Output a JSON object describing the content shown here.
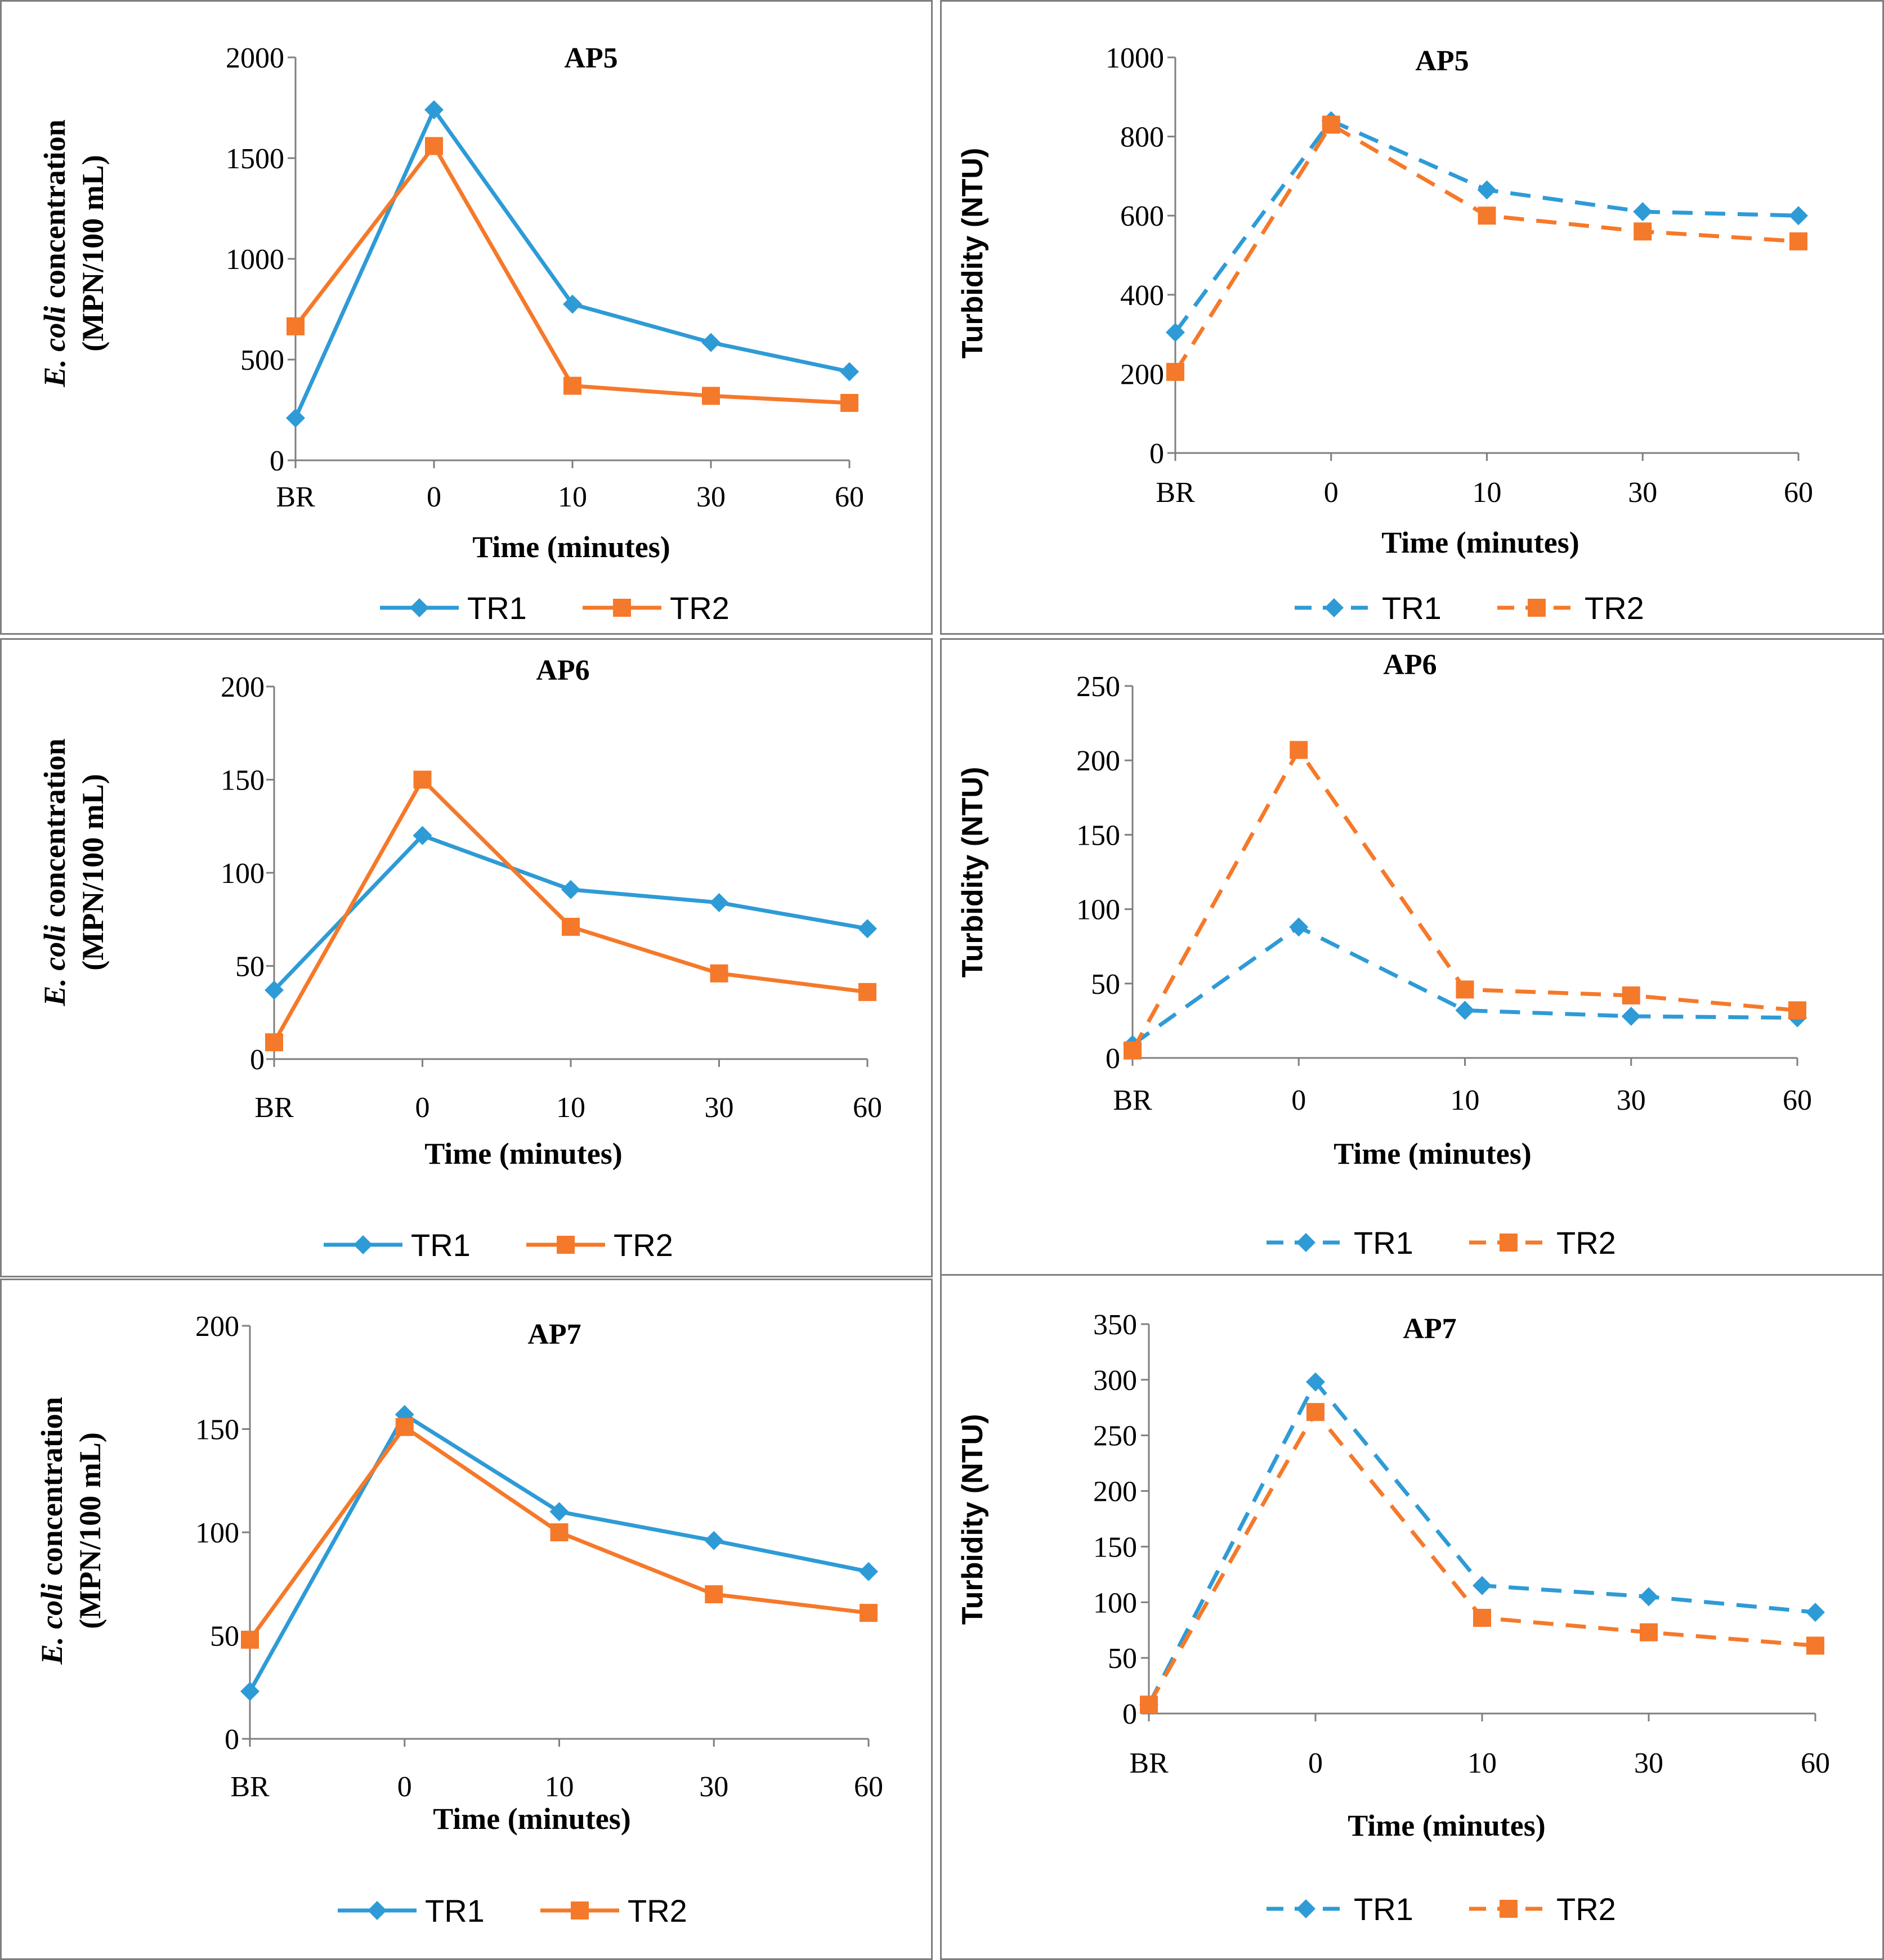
{
  "colors": {
    "tr1": "#2e9bd6",
    "tr2": "#f5792a",
    "axis": "#7f7f7f",
    "text": "#000000"
  },
  "chart_data": [
    {
      "id": "ecoli-ap5",
      "type": "line",
      "title": "AP5",
      "xlabel": "Time (minutes)",
      "ylabel_parts": [
        "E. coli",
        " concentration",
        "(MPN/100 mL)"
      ],
      "categories": [
        "BR",
        "0",
        "10",
        "30",
        "60"
      ],
      "ylim": [
        0,
        2000
      ],
      "yticks": [
        0,
        500,
        1000,
        1500,
        2000
      ],
      "line_style": "solid",
      "series": [
        {
          "name": "TR1",
          "marker": "diamond",
          "values": [
            210,
            1740,
            775,
            585,
            440
          ]
        },
        {
          "name": "TR2",
          "marker": "square",
          "values": [
            665,
            1560,
            370,
            320,
            285
          ]
        }
      ]
    },
    {
      "id": "turbidity-ap5",
      "type": "line",
      "title": "AP5",
      "xlabel": "Time (minutes)",
      "ylabel": "Turbidity (NTU)",
      "categories": [
        "BR",
        "0",
        "10",
        "30",
        "60"
      ],
      "ylim": [
        0,
        1000
      ],
      "yticks": [
        0,
        200,
        400,
        600,
        800,
        1000
      ],
      "line_style": "dashed",
      "series": [
        {
          "name": "TR1",
          "marker": "diamond",
          "values": [
            305,
            840,
            665,
            610,
            600
          ]
        },
        {
          "name": "TR2",
          "marker": "square",
          "values": [
            205,
            830,
            600,
            560,
            535
          ]
        }
      ]
    },
    {
      "id": "ecoli-ap6",
      "type": "line",
      "title": "AP6",
      "xlabel": "Time (minutes)",
      "ylabel_parts": [
        "E. coli",
        " concentration",
        "(MPN/100 mL)"
      ],
      "categories": [
        "BR",
        "0",
        "10",
        "30",
        "60"
      ],
      "ylim": [
        0,
        200
      ],
      "yticks": [
        0,
        50,
        100,
        150,
        200
      ],
      "line_style": "solid",
      "series": [
        {
          "name": "TR1",
          "marker": "diamond",
          "values": [
            37,
            120,
            91,
            84,
            70
          ]
        },
        {
          "name": "TR2",
          "marker": "square",
          "values": [
            9,
            150,
            71,
            46,
            36
          ]
        }
      ]
    },
    {
      "id": "turbidity-ap6",
      "type": "line",
      "title": "AP6",
      "xlabel": "Time (minutes)",
      "ylabel": "Turbidity (NTU)",
      "categories": [
        "BR",
        "0",
        "10",
        "30",
        "60"
      ],
      "ylim": [
        0,
        250
      ],
      "yticks": [
        0,
        50,
        100,
        150,
        200,
        250
      ],
      "line_style": "dashed",
      "series": [
        {
          "name": "TR1",
          "marker": "diamond",
          "values": [
            9,
            88,
            32,
            28,
            27
          ]
        },
        {
          "name": "TR2",
          "marker": "square",
          "values": [
            5,
            207,
            46,
            42,
            32
          ]
        }
      ]
    },
    {
      "id": "ecoli-ap7",
      "type": "line",
      "title": "AP7",
      "xlabel": "Time (minutes)",
      "ylabel_parts": [
        "E. coli",
        " concentration",
        "(MPN/100 mL)"
      ],
      "categories": [
        "BR",
        "0",
        "10",
        "30",
        "60"
      ],
      "ylim": [
        0,
        200
      ],
      "yticks": [
        0,
        50,
        100,
        150,
        200
      ],
      "line_style": "solid",
      "series": [
        {
          "name": "TR1",
          "marker": "diamond",
          "values": [
            23,
            157,
            110,
            96,
            81
          ]
        },
        {
          "name": "TR2",
          "marker": "square",
          "values": [
            48,
            151,
            100,
            70,
            61
          ]
        }
      ]
    },
    {
      "id": "turbidity-ap7",
      "type": "line",
      "title": "AP7",
      "xlabel": "Time (minutes)",
      "ylabel": "Turbidity  (NTU)",
      "categories": [
        "BR",
        "0",
        "10",
        "30",
        "60"
      ],
      "ylim": [
        0,
        350
      ],
      "yticks": [
        0,
        50,
        100,
        150,
        200,
        250,
        300,
        350
      ],
      "line_style": "dashed",
      "series": [
        {
          "name": "TR1",
          "marker": "diamond",
          "values": [
            8,
            298,
            115,
            105,
            91
          ]
        },
        {
          "name": "TR2",
          "marker": "square",
          "values": [
            8,
            271,
            86,
            73,
            61
          ]
        }
      ]
    }
  ]
}
